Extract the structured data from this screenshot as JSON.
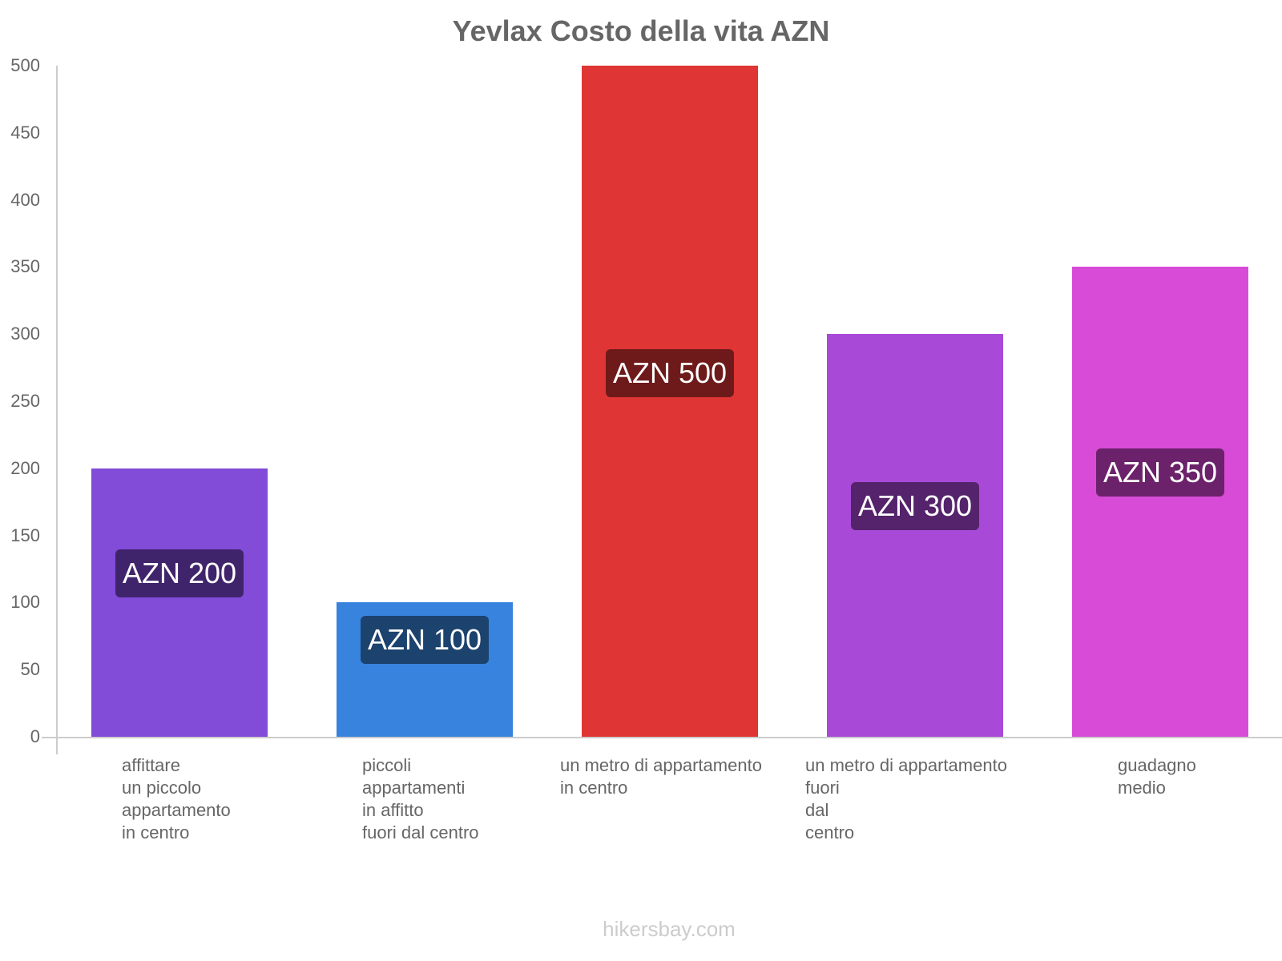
{
  "chart_data": {
    "type": "bar",
    "title": "Yevlax Costo della vita AZN",
    "xlabel": "",
    "ylabel": "",
    "ylim": [
      0,
      500
    ],
    "yticks": [
      0,
      50,
      100,
      150,
      200,
      250,
      300,
      350,
      400,
      450,
      500
    ],
    "grid": false,
    "categories": [
      "affittare un piccolo appartamento in centro",
      "piccoli appartamenti in affitto fuori dal centro",
      "un metro di appartamento in centro",
      "un metro di appartamento fuori dal centro",
      "guadagno medio"
    ],
    "values": [
      200,
      100,
      500,
      300,
      350
    ],
    "data_labels": [
      "AZN 200",
      "AZN 100",
      "AZN 500",
      "AZN 300",
      "AZN 350"
    ],
    "colors": [
      "#824bd8",
      "#3783de",
      "#e03535",
      "#a849d8",
      "#d74bd6"
    ],
    "label_bg_colors": [
      "#40246b",
      "#1c426e",
      "#6e1a1a",
      "#54236b",
      "#6b226a"
    ]
  },
  "title": "Yevlax Costo della vita AZN",
  "yticks": [
    "0",
    "50",
    "100",
    "150",
    "200",
    "250",
    "300",
    "350",
    "400",
    "450",
    "500"
  ],
  "bars": [
    {
      "label": "AZN 200",
      "xlabel": "affittare\nun piccolo\nappartamento\nin centro"
    },
    {
      "label": "AZN 100",
      "xlabel": "piccoli\nappartamenti\nin affitto\nfuori dal centro"
    },
    {
      "label": "AZN 500",
      "xlabel": "un metro di appartamento\nin centro"
    },
    {
      "label": "AZN 300",
      "xlabel": "un metro di appartamento\nfuori\ndal\ncentro"
    },
    {
      "label": "AZN 350",
      "xlabel": "guadagno\nmedio"
    }
  ],
  "watermark": "hikersbay.com"
}
